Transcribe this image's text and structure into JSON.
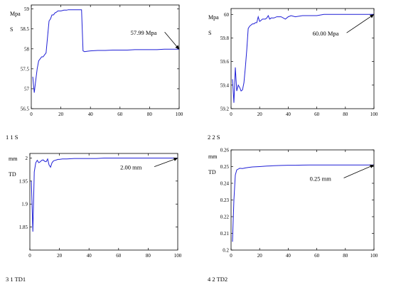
{
  "glyph": "",
  "charts": [
    {
      "ylabel": [
        "",
        "Mpa",
        "",
        "S"
      ],
      "xlabel": "",
      "caption": "1 1 S",
      "bottom_label": "",
      "annotation": "57.99 Mpa"
    },
    {
      "ylabel": [
        "",
        "Mpa",
        "",
        "S"
      ],
      "xlabel": "",
      "caption": "2 2 S",
      "bottom_label": "",
      "annotation": "60.00 Mpa"
    },
    {
      "ylabel": [
        "",
        "mm",
        "",
        "TD"
      ],
      "xlabel": "",
      "caption": "3 1 TD1",
      "bottom_label": "",
      "annotation": "2.00 mm"
    },
    {
      "ylabel": [
        "",
        "mm",
        "",
        "TD"
      ],
      "xlabel": "",
      "caption": "4 2 TD2",
      "bottom_label": "",
      "annotation": "0.25 mm"
    }
  ],
  "chart_data": [
    {
      "type": "line",
      "title": "",
      "xlabel": "",
      "ylabel": "Mpa S",
      "xlim": [
        0,
        100
      ],
      "ylim": [
        56.5,
        59.1
      ],
      "xticks": [
        0,
        20,
        40,
        60,
        80,
        100
      ],
      "yticks": [
        56.5,
        57,
        57.5,
        58,
        58.5,
        59
      ],
      "series": [
        {
          "color": "#1f1fd6",
          "x": [
            1,
            2,
            3,
            4,
            5,
            6,
            7,
            8,
            9,
            10,
            11,
            12,
            13,
            14,
            15,
            16,
            17,
            18,
            19,
            20,
            21,
            22,
            23,
            24,
            25,
            26,
            27,
            28,
            29,
            30,
            31,
            32,
            33,
            34,
            35,
            36,
            38,
            40,
            45,
            50,
            55,
            60,
            65,
            70,
            75,
            80,
            85,
            90,
            95,
            100
          ],
          "y": [
            57.3,
            56.9,
            57.2,
            57.5,
            57.7,
            57.75,
            57.8,
            57.8,
            57.85,
            57.9,
            58.3,
            58.7,
            58.75,
            58.85,
            58.85,
            58.9,
            58.92,
            58.95,
            58.95,
            58.95,
            58.96,
            58.97,
            58.97,
            58.97,
            58.98,
            58.98,
            58.98,
            58.98,
            58.98,
            58.98,
            58.98,
            58.98,
            58.98,
            58.98,
            57.95,
            57.93,
            57.94,
            57.95,
            57.96,
            57.96,
            57.97,
            57.97,
            57.97,
            57.98,
            57.98,
            57.98,
            57.98,
            57.99,
            57.99,
            57.99
          ]
        }
      ],
      "annotation": {
        "text": "57.99 Mpa",
        "x": 100,
        "y": 57.99,
        "text_x": 70,
        "text_y": 58.35
      }
    },
    {
      "type": "line",
      "title": "",
      "xlabel": "",
      "ylabel": "Mpa S",
      "xlim": [
        0,
        100
      ],
      "ylim": [
        59.2,
        60.05
      ],
      "xticks": [
        0,
        20,
        40,
        60,
        80,
        100
      ],
      "yticks": [
        59.2,
        59.4,
        59.6,
        59.8,
        60
      ],
      "series": [
        {
          "color": "#1f1fd6",
          "x": [
            1,
            2,
            3,
            4,
            5,
            6,
            7,
            8,
            9,
            10,
            11,
            12,
            13,
            14,
            15,
            16,
            17,
            18,
            19,
            20,
            21,
            22,
            23,
            24,
            25,
            26,
            27,
            28,
            30,
            32,
            35,
            38,
            40,
            42,
            45,
            50,
            55,
            60,
            65,
            70,
            75,
            80,
            85,
            90,
            95,
            100
          ],
          "y": [
            59.45,
            59.25,
            59.55,
            59.35,
            59.4,
            59.38,
            59.35,
            59.36,
            59.42,
            59.55,
            59.7,
            59.88,
            59.9,
            59.91,
            59.92,
            59.92,
            59.93,
            59.93,
            59.98,
            59.94,
            59.95,
            59.96,
            59.96,
            59.96,
            59.97,
            59.99,
            59.96,
            59.97,
            59.97,
            59.98,
            59.98,
            59.96,
            59.98,
            59.99,
            59.98,
            59.99,
            59.99,
            59.99,
            60.0,
            60.0,
            60.0,
            60.0,
            60.0,
            60.0,
            60.0,
            60.0
          ]
        }
      ],
      "annotation": {
        "text": "60.00 Mpa",
        "x": 100,
        "y": 60.0,
        "text_x": 60,
        "text_y": 59.82
      }
    },
    {
      "type": "line",
      "title": "",
      "xlabel": "",
      "ylabel": "mm TD",
      "xlim": [
        0,
        100
      ],
      "ylim": [
        1.8,
        2.01
      ],
      "xticks": [
        0,
        20,
        40,
        60,
        80,
        100
      ],
      "yticks": [
        1.85,
        1.9,
        1.95,
        2
      ],
      "series": [
        {
          "color": "#1f1fd6",
          "x": [
            1,
            2,
            3,
            4,
            5,
            6,
            7,
            8,
            9,
            10,
            11,
            12,
            13,
            14,
            15,
            16,
            17,
            18,
            19,
            20,
            22,
            25,
            30,
            35,
            40,
            45,
            50,
            55,
            60,
            65,
            70,
            75,
            80,
            85,
            90,
            95,
            100
          ],
          "y": [
            1.95,
            1.84,
            1.97,
            1.99,
            1.995,
            1.99,
            1.992,
            1.995,
            1.996,
            1.993,
            1.992,
            1.998,
            1.985,
            1.98,
            1.99,
            1.994,
            1.995,
            1.996,
            1.997,
            1.997,
            1.998,
            1.998,
            1.999,
            1.999,
            1.999,
            1.999,
            2.0,
            2.0,
            2.0,
            2.0,
            2.0,
            2.0,
            2.0,
            2.0,
            2.0,
            2.0,
            2.0
          ]
        }
      ],
      "annotation": {
        "text": "2.00 mm",
        "x": 100,
        "y": 2.0,
        "text_x": 64,
        "text_y": 1.975
      }
    },
    {
      "type": "line",
      "title": "",
      "xlabel": "",
      "ylabel": "mm TD",
      "xlim": [
        0,
        100
      ],
      "ylim": [
        0.2,
        0.26
      ],
      "xticks": [
        0,
        20,
        40,
        60,
        80,
        100
      ],
      "yticks": [
        0.2,
        0.21,
        0.22,
        0.23,
        0.24,
        0.25,
        0.26
      ],
      "series": [
        {
          "color": "#1f1fd6",
          "x": [
            1,
            2,
            3,
            4,
            5,
            6,
            8,
            10,
            12,
            15,
            20,
            25,
            30,
            35,
            40,
            45,
            50,
            55,
            60,
            65,
            70,
            75,
            80,
            85,
            90,
            95,
            100
          ],
          "y": [
            0.205,
            0.23,
            0.245,
            0.248,
            0.2485,
            0.249,
            0.2488,
            0.2492,
            0.2495,
            0.2498,
            0.25,
            0.2503,
            0.2505,
            0.2507,
            0.2508,
            0.2508,
            0.2509,
            0.251,
            0.251,
            0.251,
            0.251,
            0.251,
            0.251,
            0.251,
            0.251,
            0.251,
            0.251
          ]
        }
      ],
      "annotation": {
        "text": "0.25 mm",
        "x": 100,
        "y": 0.251,
        "text_x": 58,
        "text_y": 0.2415
      }
    }
  ]
}
